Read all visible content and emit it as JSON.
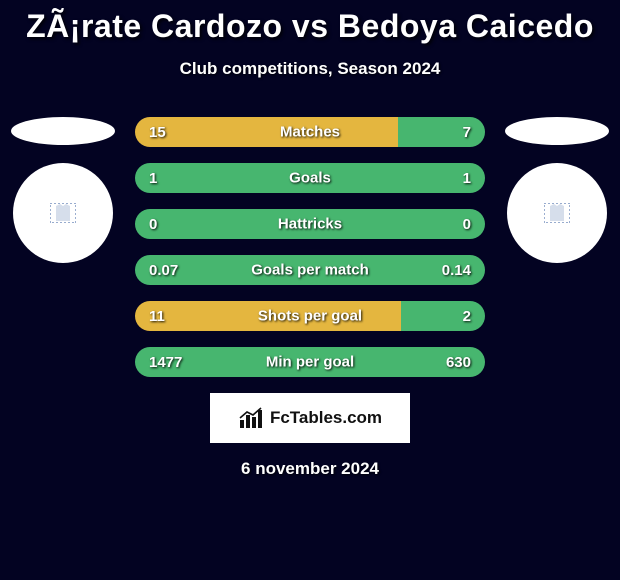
{
  "title": "ZÃ¡rate Cardozo vs Bedoya Caicedo",
  "subtitle": "Club competitions, Season 2024",
  "date": "6 november 2024",
  "logo_text": "FcTables.com",
  "colors": {
    "left_bar": "#e4b63f",
    "right_bar": "#47b66f",
    "full_green": "#47b66f",
    "shirt_left": "#5a7ab0",
    "shirt_right": "#5a7ab0"
  },
  "bars": [
    {
      "label": "Matches",
      "left_val": "15",
      "right_val": "7",
      "left_pct": 75,
      "right_pct": 25
    },
    {
      "label": "Goals",
      "left_val": "1",
      "right_val": "1",
      "left_pct": 100,
      "right_pct": 0
    },
    {
      "label": "Hattricks",
      "left_val": "0",
      "right_val": "0",
      "left_pct": 100,
      "right_pct": 0
    },
    {
      "label": "Goals per match",
      "left_val": "0.07",
      "right_val": "0.14",
      "left_pct": 100,
      "right_pct": 0
    },
    {
      "label": "Shots per goal",
      "left_val": "11",
      "right_val": "2",
      "left_pct": 76,
      "right_pct": 24
    },
    {
      "label": "Min per goal",
      "left_val": "1477",
      "right_val": "630",
      "left_pct": 100,
      "right_pct": 0
    }
  ]
}
